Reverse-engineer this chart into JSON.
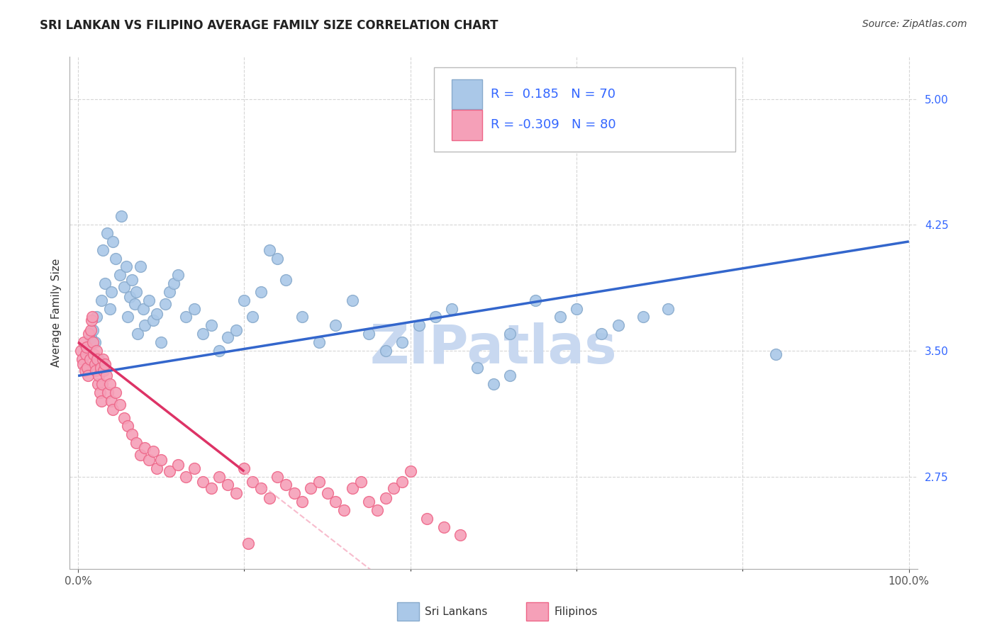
{
  "title": "SRI LANKAN VS FILIPINO AVERAGE FAMILY SIZE CORRELATION CHART",
  "source": "Source: ZipAtlas.com",
  "ylabel": "Average Family Size",
  "watermark": "ZIPatlas",
  "right_yticks": [
    2.75,
    3.5,
    4.25,
    5.0
  ],
  "xlim": [
    -1.0,
    101.0
  ],
  "ylim": [
    2.2,
    5.25
  ],
  "sri_lankans": {
    "R": 0.185,
    "N": 70,
    "color": "#aac8e8",
    "color_edge": "#88aacc",
    "line_color": "#3366cc",
    "x": [
      1.2,
      1.5,
      1.8,
      2.0,
      2.2,
      2.5,
      2.8,
      3.0,
      3.2,
      3.5,
      3.8,
      4.0,
      4.2,
      4.5,
      5.0,
      5.2,
      5.5,
      5.8,
      6.0,
      6.2,
      6.5,
      6.8,
      7.0,
      7.2,
      7.5,
      7.8,
      8.0,
      8.5,
      9.0,
      9.5,
      10.0,
      10.5,
      11.0,
      11.5,
      12.0,
      13.0,
      14.0,
      15.0,
      16.0,
      17.0,
      18.0,
      19.0,
      20.0,
      21.0,
      22.0,
      23.0,
      24.0,
      25.0,
      27.0,
      29.0,
      31.0,
      33.0,
      35.0,
      37.0,
      39.0,
      41.0,
      43.0,
      45.0,
      48.0,
      50.0,
      52.0,
      55.0,
      58.0,
      60.0,
      63.0,
      65.0,
      68.0,
      71.0,
      84.0,
      52.0
    ],
    "y": [
      3.5,
      3.58,
      3.62,
      3.55,
      3.7,
      3.45,
      3.8,
      4.1,
      3.9,
      4.2,
      3.75,
      3.85,
      4.15,
      4.05,
      3.95,
      4.3,
      3.88,
      4.0,
      3.7,
      3.82,
      3.92,
      3.78,
      3.85,
      3.6,
      4.0,
      3.75,
      3.65,
      3.8,
      3.68,
      3.72,
      3.55,
      3.78,
      3.85,
      3.9,
      3.95,
      3.7,
      3.75,
      3.6,
      3.65,
      3.5,
      3.58,
      3.62,
      3.8,
      3.7,
      3.85,
      4.1,
      4.05,
      3.92,
      3.7,
      3.55,
      3.65,
      3.8,
      3.6,
      3.5,
      3.55,
      3.65,
      3.7,
      3.75,
      3.4,
      3.3,
      3.6,
      3.8,
      3.7,
      3.75,
      3.6,
      3.65,
      3.7,
      3.75,
      3.48,
      3.35
    ]
  },
  "filipinos": {
    "R": -0.309,
    "N": 80,
    "color": "#f5a0b8",
    "color_edge": "#ee6688",
    "line_color": "#dd3366",
    "line_solid_end": 20.0,
    "x": [
      0.3,
      0.5,
      0.6,
      0.7,
      0.8,
      0.9,
      1.0,
      1.1,
      1.2,
      1.3,
      1.4,
      1.5,
      1.6,
      1.7,
      1.8,
      1.9,
      2.0,
      2.1,
      2.2,
      2.3,
      2.4,
      2.5,
      2.6,
      2.7,
      2.8,
      2.9,
      3.0,
      3.1,
      3.2,
      3.4,
      3.6,
      3.8,
      4.0,
      4.2,
      4.5,
      5.0,
      5.5,
      6.0,
      6.5,
      7.0,
      7.5,
      8.0,
      8.5,
      9.0,
      9.5,
      10.0,
      11.0,
      12.0,
      13.0,
      14.0,
      15.0,
      16.0,
      17.0,
      18.0,
      19.0,
      20.0,
      21.0,
      22.0,
      23.0,
      24.0,
      25.0,
      26.0,
      27.0,
      28.0,
      29.0,
      30.0,
      31.0,
      32.0,
      33.0,
      34.0,
      35.0,
      36.0,
      37.0,
      38.0,
      39.0,
      40.0,
      42.0,
      44.0,
      46.0,
      20.5
    ],
    "y": [
      3.5,
      3.45,
      3.42,
      3.55,
      3.38,
      3.48,
      3.52,
      3.4,
      3.35,
      3.6,
      3.45,
      3.62,
      3.68,
      3.7,
      3.55,
      3.48,
      3.42,
      3.38,
      3.5,
      3.45,
      3.3,
      3.35,
      3.25,
      3.4,
      3.2,
      3.3,
      3.45,
      3.38,
      3.42,
      3.35,
      3.25,
      3.3,
      3.2,
      3.15,
      3.25,
      3.18,
      3.1,
      3.05,
      3.0,
      2.95,
      2.88,
      2.92,
      2.85,
      2.9,
      2.8,
      2.85,
      2.78,
      2.82,
      2.75,
      2.8,
      2.72,
      2.68,
      2.75,
      2.7,
      2.65,
      2.8,
      2.72,
      2.68,
      2.62,
      2.75,
      2.7,
      2.65,
      2.6,
      2.68,
      2.72,
      2.65,
      2.6,
      2.55,
      2.68,
      2.72,
      2.6,
      2.55,
      2.62,
      2.68,
      2.72,
      2.78,
      2.5,
      2.45,
      2.4,
      2.35
    ]
  },
  "title_fontsize": 12,
  "source_fontsize": 10,
  "axis_label_fontsize": 11,
  "tick_fontsize": 11,
  "legend_fontsize": 13,
  "watermark_fontsize": 55,
  "watermark_color": "#c8d8f0",
  "background_color": "#ffffff",
  "grid_color": "#cccccc",
  "right_axis_color": "#3366ff",
  "tick_color": "#555555"
}
